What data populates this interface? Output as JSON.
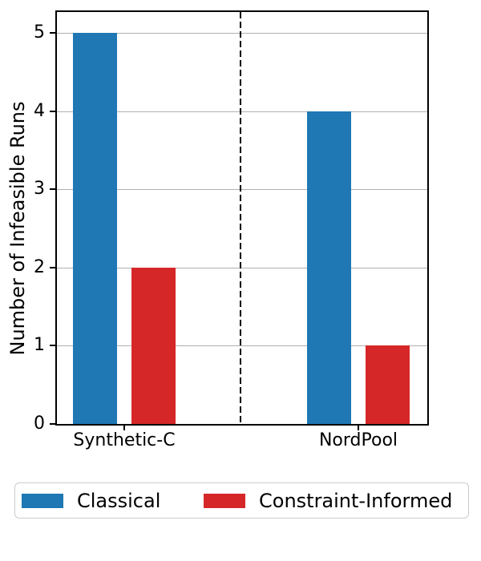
{
  "chart_data": {
    "type": "bar",
    "title": "",
    "xlabel": "",
    "ylabel": "Number of Infeasible Runs",
    "categories": [
      "Synthetic-C",
      "NordPool"
    ],
    "series": [
      {
        "name": "Classical",
        "color": "#1f77b4",
        "values": [
          5,
          4
        ]
      },
      {
        "name": "Constraint-Informed",
        "color": "#d62728",
        "values": [
          2,
          1
        ]
      }
    ],
    "ylim": [
      0,
      5.27
    ],
    "yticks": [
      0,
      1,
      2,
      3,
      4,
      5
    ],
    "grid": "horizontal",
    "separator": {
      "style": "dashed",
      "color": "#000000",
      "between": [
        "Synthetic-C",
        "NordPool"
      ]
    },
    "legend_position": "bottom"
  },
  "colors": {
    "background": "#ffffff",
    "grid": "#b0b0b0",
    "spine": "#000000",
    "legend_border": "#cccccc"
  }
}
